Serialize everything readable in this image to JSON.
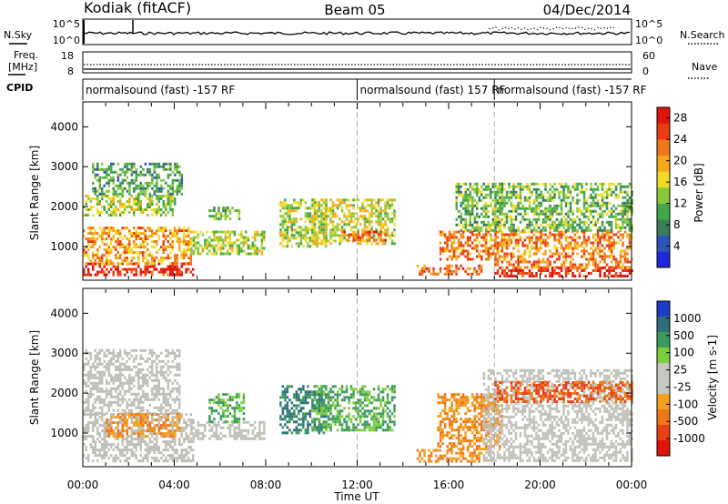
{
  "header": {
    "station": "Kodiak (fitACF)",
    "beam": "Beam 05",
    "date": "04/Dec/2014"
  },
  "top_panels": {
    "nsky_label": "N.Sky",
    "nsearch_label": "N.Search",
    "noise_ticks": [
      "10^5",
      "10^0"
    ],
    "freq_label_1": "Freq.",
    "freq_label_2": "[MHz]",
    "freq_ticks": [
      "18",
      "8"
    ],
    "nave_label": "Nave",
    "nave_ticks": [
      "60",
      "0"
    ],
    "cpid_label": "CPID",
    "cpid_segments": [
      {
        "label": "normalsound (fast) -157 RF",
        "start_hour": 0.0
      },
      {
        "label": "normalsound (fast) 157 RF",
        "start_hour": 12.0
      },
      {
        "label": "normalsound (fast) -157 RF",
        "start_hour": 18.0
      }
    ]
  },
  "colors": {
    "power": [
      "#1e28d8",
      "#2e55b8",
      "#3a7d5a",
      "#44a84a",
      "#8cc83c",
      "#f0dc28",
      "#f6a81c",
      "#f07818",
      "#e83c14",
      "#e0140c"
    ],
    "velocity": [
      "#1e3cc8",
      "#2f6e7a",
      "#3d9a5e",
      "#7ccf3c",
      "#c8c8c0",
      "#c8c8c0",
      "#f4a020",
      "#f07818",
      "#e84014",
      "#e0140c"
    ],
    "ground_scatter": "#c0c0b8"
  },
  "chart_data": [
    {
      "type": "heatmap",
      "title": "",
      "xlabel": "",
      "ylabel": "Slant Range [km]",
      "xlim": [
        0,
        24
      ],
      "ylim": [
        180,
        4600
      ],
      "x_ticks": [
        "00:00",
        "04:00",
        "08:00",
        "12:00",
        "16:00",
        "20:00",
        "00:00"
      ],
      "y_ticks": [
        1000,
        2000,
        3000,
        4000
      ],
      "colorbar": {
        "label": "Power [dB]",
        "ticks": [
          4,
          8,
          12,
          16,
          20,
          24,
          28
        ],
        "range": [
          0,
          30
        ]
      },
      "regions": [
        {
          "t0": 0.0,
          "t1": 4.8,
          "r0": 280,
          "r1": 600,
          "level": 28
        },
        {
          "t0": 0.0,
          "t1": 4.7,
          "r0": 600,
          "r1": 1500,
          "level": 20
        },
        {
          "t0": 0.0,
          "t1": 4.0,
          "r0": 1800,
          "r1": 2300,
          "level": 14
        },
        {
          "t0": 0.4,
          "t1": 4.3,
          "r0": 2300,
          "r1": 3100,
          "level": 10
        },
        {
          "t0": 4.7,
          "t1": 7.9,
          "r0": 850,
          "r1": 1400,
          "level": 14
        },
        {
          "t0": 5.5,
          "t1": 6.8,
          "r0": 1700,
          "r1": 2000,
          "level": 12
        },
        {
          "t0": 8.6,
          "t1": 10.6,
          "r0": 1000,
          "r1": 2200,
          "level": 14
        },
        {
          "t0": 10.0,
          "t1": 13.6,
          "r0": 1100,
          "r1": 2200,
          "level": 16
        },
        {
          "t0": 11.3,
          "t1": 13.2,
          "r0": 1150,
          "r1": 1400,
          "level": 24
        },
        {
          "t0": 14.6,
          "t1": 17.4,
          "r0": 280,
          "r1": 550,
          "level": 24
        },
        {
          "t0": 15.6,
          "t1": 18.3,
          "r0": 650,
          "r1": 1400,
          "level": 22
        },
        {
          "t0": 16.3,
          "t1": 18.3,
          "r0": 1400,
          "r1": 2600,
          "level": 12
        },
        {
          "t0": 18.0,
          "t1": 24.0,
          "r0": 250,
          "r1": 500,
          "level": 28
        },
        {
          "t0": 18.0,
          "t1": 24.0,
          "r0": 500,
          "r1": 1400,
          "level": 22
        },
        {
          "t0": 18.0,
          "t1": 24.0,
          "r0": 1400,
          "r1": 2600,
          "level": 12
        }
      ]
    },
    {
      "type": "heatmap",
      "title": "",
      "xlabel": "Time UT",
      "ylabel": "Slant Range [km]",
      "xlim": [
        0,
        24
      ],
      "ylim": [
        180,
        4600
      ],
      "x_ticks": [
        "00:00",
        "04:00",
        "08:00",
        "12:00",
        "16:00",
        "20:00",
        "00:00"
      ],
      "y_ticks": [
        1000,
        2000,
        3000,
        4000
      ],
      "colorbar": {
        "label": "Velocity [m s-1]",
        "tick_labels": [
          "1000",
          "500",
          "100",
          "25",
          "-25",
          "-100",
          "-500",
          "-1000"
        ]
      },
      "regions": [
        {
          "t0": 0.0,
          "t1": 4.8,
          "r0": 280,
          "r1": 1500,
          "class": "ground"
        },
        {
          "t0": 0.0,
          "t1": 4.2,
          "r0": 1500,
          "r1": 3100,
          "class": "ground"
        },
        {
          "t0": 1.0,
          "t1": 4.2,
          "r0": 900,
          "r1": 1500,
          "class": "neg_100"
        },
        {
          "t0": 4.7,
          "t1": 7.9,
          "r0": 850,
          "r1": 1300,
          "class": "ground"
        },
        {
          "t0": 5.5,
          "t1": 7.0,
          "r0": 1250,
          "r1": 2000,
          "class": "pos_100"
        },
        {
          "t0": 8.6,
          "t1": 10.6,
          "r0": 1000,
          "r1": 2200,
          "class": "pos_500"
        },
        {
          "t0": 10.0,
          "t1": 13.6,
          "r0": 1100,
          "r1": 2200,
          "class": "pos_100"
        },
        {
          "t0": 14.6,
          "t1": 17.4,
          "r0": 280,
          "r1": 600,
          "class": "neg_100"
        },
        {
          "t0": 15.5,
          "t1": 18.3,
          "r0": 600,
          "r1": 2000,
          "class": "neg_100"
        },
        {
          "t0": 17.5,
          "t1": 24.0,
          "r0": 280,
          "r1": 2600,
          "class": "ground"
        },
        {
          "t0": 18.0,
          "t1": 24.0,
          "r0": 1800,
          "r1": 2300,
          "class": "neg_500"
        }
      ]
    }
  ]
}
